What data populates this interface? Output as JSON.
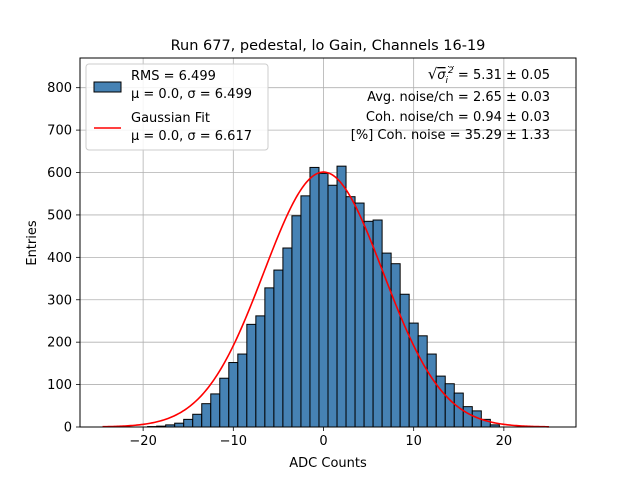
{
  "chart_data": {
    "type": "bar",
    "title": "Run 677, pedestal, lo Gain, Channels 16-19",
    "xlabel": "ADC Counts",
    "ylabel": "Entries",
    "xlim": [
      -27,
      28
    ],
    "ylim": [
      0,
      870
    ],
    "xticks": [
      -20,
      -10,
      0,
      10,
      20
    ],
    "yticks": [
      0,
      100,
      200,
      300,
      400,
      500,
      600,
      700,
      800
    ],
    "grid": true,
    "bin_width": 1,
    "bin_centers": [
      -19,
      -18,
      -17,
      -16,
      -15,
      -14,
      -13,
      -12,
      -11,
      -10,
      -9,
      -8,
      -7,
      -6,
      -5,
      -4,
      -3,
      -2,
      -1,
      0,
      1,
      2,
      3,
      4,
      5,
      6,
      7,
      8,
      9,
      10,
      11,
      12,
      13,
      14,
      15,
      16,
      17,
      18,
      19
    ],
    "values": [
      1,
      2,
      5,
      9,
      18,
      30,
      55,
      78,
      115,
      152,
      172,
      242,
      262,
      328,
      370,
      422,
      498,
      545,
      612,
      598,
      570,
      615,
      543,
      528,
      485,
      488,
      410,
      385,
      313,
      245,
      215,
      172,
      120,
      102,
      80,
      48,
      38,
      18,
      5
    ],
    "bar_color": "#4682b4",
    "fit": {
      "name": "Gaussian Fit",
      "mu": 0.0,
      "sigma": 6.617,
      "amplitude": 601,
      "x_range": [
        -24.5,
        25
      ],
      "color": "#ff0000"
    },
    "legend": {
      "position": "top-left",
      "entries": [
        {
          "kind": "patch",
          "line1": "RMS = 6.499",
          "line2": "μ = 0.0, σ = 6.499",
          "color": "#4682b4"
        },
        {
          "kind": "line",
          "line1": "Gaussian Fit",
          "line2": "μ = 0.0, σ = 6.617",
          "color": "#ff0000"
        }
      ]
    },
    "annotations": {
      "position": "top-right",
      "sigma_label_suffix": " = 5.31 ± 0.05",
      "lines": [
        "Avg. noise/ch = 2.65 ± 0.03",
        "Coh. noise/ch = 0.94 ± 0.03",
        "[%] Coh. noise = 35.29 ± 1.33"
      ]
    }
  }
}
